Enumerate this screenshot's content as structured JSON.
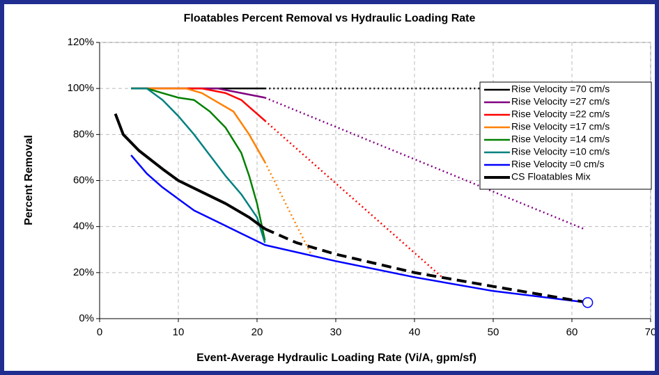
{
  "chart_data": {
    "type": "line",
    "title": "Floatables Percent Removal vs Hydraulic Loading Rate",
    "x_label": "Event-Average Hydraulic Loading Rate (Vi/A, gpm/sf)",
    "y_label": "Percent Removal",
    "xlim": [
      0,
      70
    ],
    "xticks": [
      0,
      10,
      20,
      30,
      40,
      50,
      60,
      70
    ],
    "ylim": [
      0,
      120
    ],
    "yticks": [
      {
        "value": 0,
        "label": "0%"
      },
      {
        "value": 20,
        "label": "20%"
      },
      {
        "value": 40,
        "label": "40%"
      },
      {
        "value": 60,
        "label": "60%"
      },
      {
        "value": 80,
        "label": "80%"
      },
      {
        "value": 100,
        "label": "100%"
      },
      {
        "value": 120,
        "label": "120%"
      }
    ],
    "grid": true,
    "legend": "upper right",
    "series": [
      {
        "name": "Rise Velocity =70 cm/s",
        "color": "#000000",
        "line_width": 2.5,
        "x": [
          4,
          21
        ],
        "values": [
          100,
          100
        ],
        "extension": {
          "style": "dotted",
          "x": [
            21,
            62
          ],
          "values": [
            100,
            100
          ]
        }
      },
      {
        "name": "Rise Velocity =27 cm/s",
        "color": "#800080",
        "line_width": 2.5,
        "x": [
          4,
          15,
          18,
          21
        ],
        "values": [
          100,
          100,
          98,
          96
        ],
        "extension": {
          "style": "dotted",
          "x": [
            21,
            61.5
          ],
          "values": [
            96,
            39
          ]
        }
      },
      {
        "name": "Rise Velocity =22 cm/s",
        "color": "#ff0000",
        "line_width": 2.5,
        "x": [
          4,
          13,
          16,
          18,
          19,
          21
        ],
        "values": [
          100,
          100,
          98,
          95,
          92,
          86
        ],
        "extension": {
          "style": "dotted",
          "x": [
            21,
            43.5
          ],
          "values": [
            86,
            18
          ]
        }
      },
      {
        "name": "Rise Velocity =17 cm/s",
        "color": "#ff8000",
        "line_width": 2.5,
        "x": [
          4,
          11,
          13,
          15,
          17,
          19,
          21
        ],
        "values": [
          100,
          100,
          98,
          94,
          90,
          80,
          68
        ],
        "extension": {
          "style": "dotted",
          "x": [
            21,
            27
          ],
          "values": [
            68,
            27
          ]
        }
      },
      {
        "name": "Rise Velocity =14 cm/s",
        "color": "#008000",
        "line_width": 2.5,
        "x": [
          4,
          6,
          8,
          10,
          12,
          14,
          16,
          18,
          19,
          20,
          21
        ],
        "values": [
          100,
          100,
          98,
          96,
          95,
          90,
          83,
          72,
          62,
          50,
          34
        ]
      },
      {
        "name": "Rise Velocity =10 cm/s",
        "color": "#008080",
        "line_width": 2.5,
        "x": [
          4,
          6,
          8,
          10,
          12,
          14,
          16,
          18,
          20,
          21
        ],
        "values": [
          100,
          100,
          95,
          88,
          80,
          71,
          62,
          54,
          44,
          33
        ]
      },
      {
        "name": "Rise Velocity =0 cm/s",
        "color": "#0000ff",
        "line_width": 2.5,
        "x": [
          4,
          5,
          6,
          8,
          10,
          12,
          15,
          18,
          21,
          30,
          40,
          50,
          62
        ],
        "values": [
          71,
          67,
          63,
          57,
          52,
          47,
          42,
          37,
          32,
          25,
          18,
          12,
          7
        ]
      },
      {
        "name": "CS Floatables Mix",
        "color": "#000000",
        "line_width": 4,
        "x": [
          2,
          3,
          5,
          8,
          10,
          13,
          16,
          19,
          21
        ],
        "values": [
          89,
          80,
          73,
          65,
          60,
          55,
          50,
          44,
          39
        ],
        "extension": {
          "style": "dashed",
          "x": [
            21,
            25,
            30,
            40,
            50,
            62
          ],
          "values": [
            39,
            33,
            28,
            20,
            14,
            7
          ]
        }
      }
    ],
    "highlight": {
      "x": 62,
      "value": 7,
      "color": "#0000ff"
    }
  }
}
